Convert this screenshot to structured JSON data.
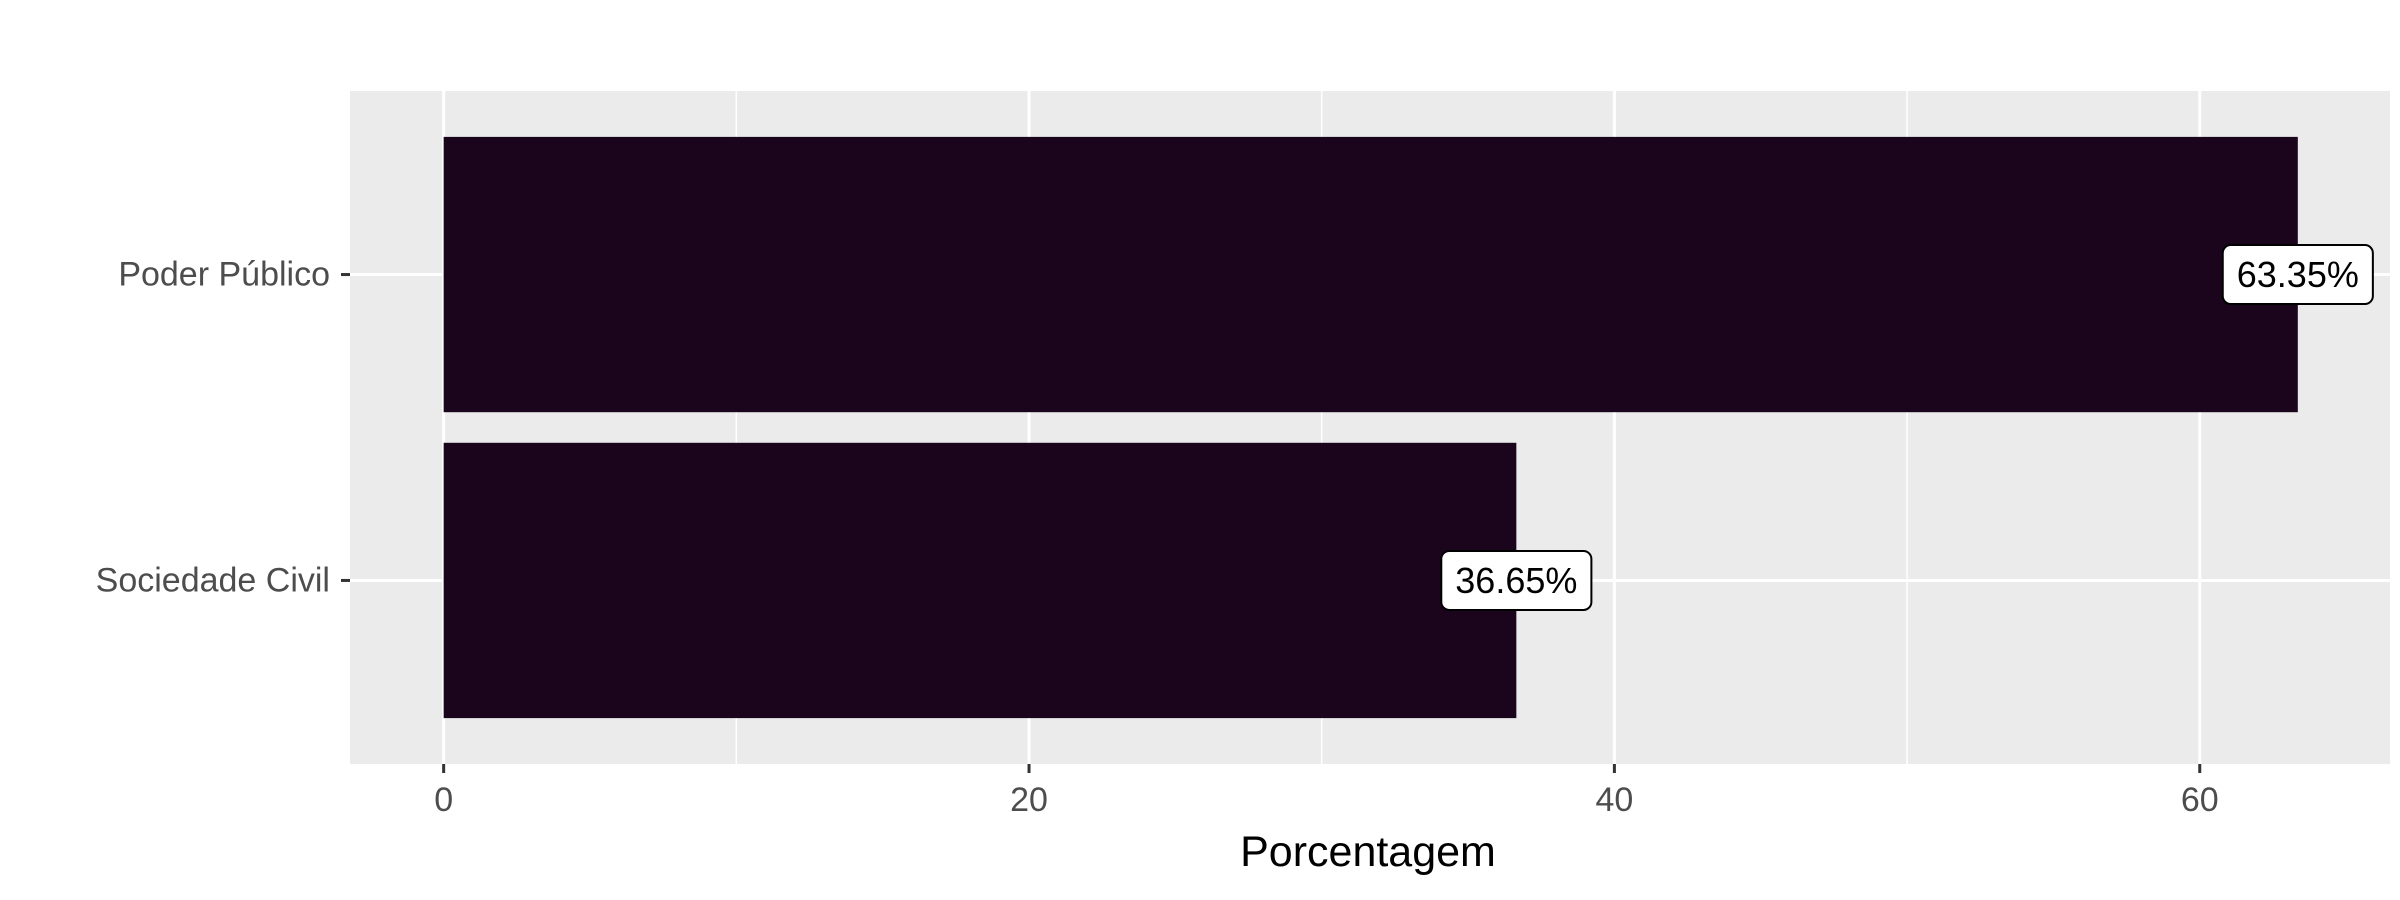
{
  "chart_data": {
    "type": "bar",
    "orientation": "horizontal",
    "categories": [
      "Poder Público",
      "Sociedade Civil"
    ],
    "values": [
      63.35,
      36.65
    ],
    "data_labels": [
      "63.35%",
      "36.65%"
    ],
    "xlabel": "Porcentagem",
    "ylabel": "",
    "title": "",
    "xlim": [
      -3.2,
      66.5
    ],
    "x_ticks": [
      0,
      20,
      40,
      60
    ],
    "grid": true,
    "legend": "none",
    "colors": {
      "bar": "#1a051d",
      "panel": "#ebebeb",
      "grid": "#ffffff",
      "tick_text": "#4d4d4d",
      "label_box": "#ffffff"
    }
  }
}
